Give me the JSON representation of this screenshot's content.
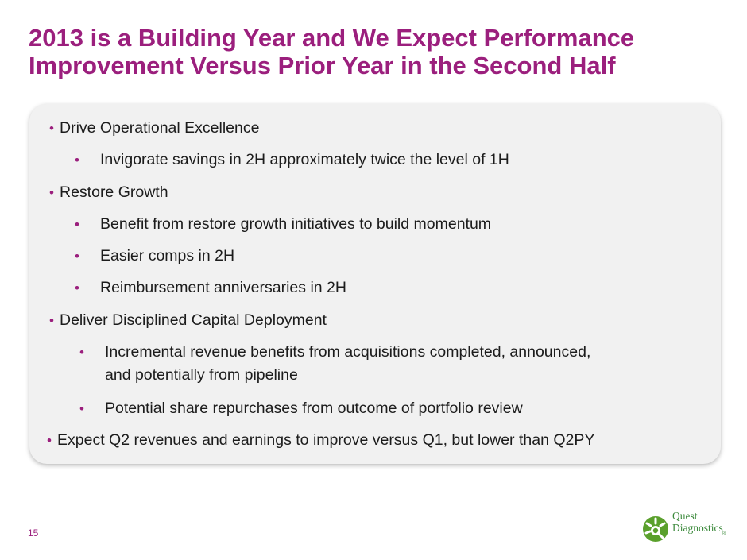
{
  "slide": {
    "title_line1": "2013 is a Building Year and We Expect Performance",
    "title_line2": "Improvement Versus Prior Year in the Second Half",
    "page_number": "15"
  },
  "bullets": {
    "b1": "Drive Operational Excellence",
    "b1_1": "Invigorate savings in 2H approximately twice the level of 1H",
    "b2": "Restore Growth",
    "b2_1": "Benefit from restore growth initiatives to build momentum",
    "b2_2": "Easier comps in 2H",
    "b2_3": "Reimbursement anniversaries in 2H",
    "b3": "Deliver Disciplined Capital Deployment",
    "b3_1_line1": "Incremental revenue benefits from acquisitions completed, announced,",
    "b3_1_line2": "and potentially from pipeline",
    "b3_2": "Potential share repurchases from outcome of portfolio review",
    "b4": "Expect Q2 revenues and earnings to improve versus Q1, but lower than Q2PY"
  },
  "logo": {
    "line1": "Quest",
    "line2": "Diagnostics",
    "mark": "®",
    "icon": "quest-diagnostics-logo-icon"
  },
  "colors": {
    "accent": "#9b1f7d",
    "panel": "#f1f1f1",
    "logo_green": "#3c8a3c"
  }
}
